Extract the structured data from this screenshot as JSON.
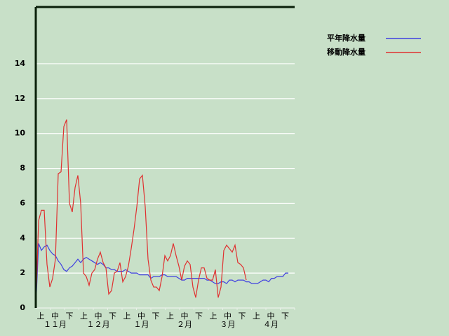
{
  "chart_data": {
    "type": "line",
    "series": [
      {
        "name": "平年降水量",
        "color": "#4040e0",
        "values": [
          0,
          3.7,
          3.3,
          3.5,
          3.6,
          3.3,
          3.1,
          3.0,
          2.7,
          2.5,
          2.2,
          2.1,
          2.3,
          2.4,
          2.6,
          2.8,
          2.6,
          2.8,
          2.9,
          2.8,
          2.7,
          2.6,
          2.5,
          2.6,
          2.5,
          2.3,
          2.3,
          2.2,
          2.2,
          2.1,
          2.1,
          2.1,
          2.2,
          2.1,
          2.0,
          2.0,
          2.0,
          1.9,
          1.9,
          1.9,
          1.9,
          1.7,
          1.8,
          1.8,
          1.8,
          1.9,
          1.9,
          1.8,
          1.8,
          1.8,
          1.8,
          1.7,
          1.6,
          1.6,
          1.7,
          1.7,
          1.7,
          1.7,
          1.7,
          1.7,
          1.7,
          1.6,
          1.6,
          1.5,
          1.4,
          1.4,
          1.5,
          1.5,
          1.4,
          1.6,
          1.6,
          1.5,
          1.6,
          1.6,
          1.6,
          1.5,
          1.5,
          1.4,
          1.4,
          1.4,
          1.5,
          1.6,
          1.6,
          1.5,
          1.7,
          1.7,
          1.8,
          1.8,
          1.8,
          2.0,
          2.0
        ]
      },
      {
        "name": "移動降水量",
        "color": "#e03030",
        "values": [
          0,
          5.0,
          5.6,
          5.6,
          2.5,
          1.2,
          1.7,
          2.8,
          7.7,
          7.8,
          10.4,
          10.8,
          6.0,
          5.5,
          6.9,
          7.6,
          6.0,
          2.0,
          1.8,
          1.3,
          2.0,
          2.2,
          2.8,
          3.2,
          2.6,
          2.3,
          0.8,
          1.0,
          2.0,
          2.1,
          2.6,
          1.5,
          1.8,
          2.4,
          3.4,
          4.5,
          5.8,
          7.4,
          7.6,
          5.8,
          2.8,
          1.6,
          1.2,
          1.2,
          1.0,
          1.8,
          3.0,
          2.7,
          3.0,
          3.7,
          3.0,
          2.4,
          1.6,
          2.4,
          2.7,
          2.5,
          1.2,
          0.6,
          1.6,
          2.3,
          2.3,
          1.7,
          1.6,
          1.6,
          2.2,
          0.6,
          1.2,
          3.3,
          3.6,
          3.4,
          3.2,
          3.6,
          2.6,
          2.5,
          2.3,
          1.6,
          null,
          null,
          null,
          null,
          null,
          null,
          null,
          null,
          null,
          null,
          null,
          null,
          null,
          null,
          null
        ]
      }
    ],
    "x_period_labels": [
      "上",
      "中",
      "下",
      "上",
      "中",
      "下",
      "上",
      "中",
      "下",
      "上",
      "中",
      "下",
      "上",
      "中",
      "下",
      "上",
      "中",
      "下"
    ],
    "x_month_labels": [
      "１１月",
      "１２月",
      "１月",
      "２月",
      "３月",
      "４月"
    ],
    "ylim": [
      0,
      17.25
    ],
    "yticks": [
      0,
      2,
      4,
      6,
      8,
      10,
      12,
      14
    ],
    "grid": true,
    "legend": "top-right"
  }
}
